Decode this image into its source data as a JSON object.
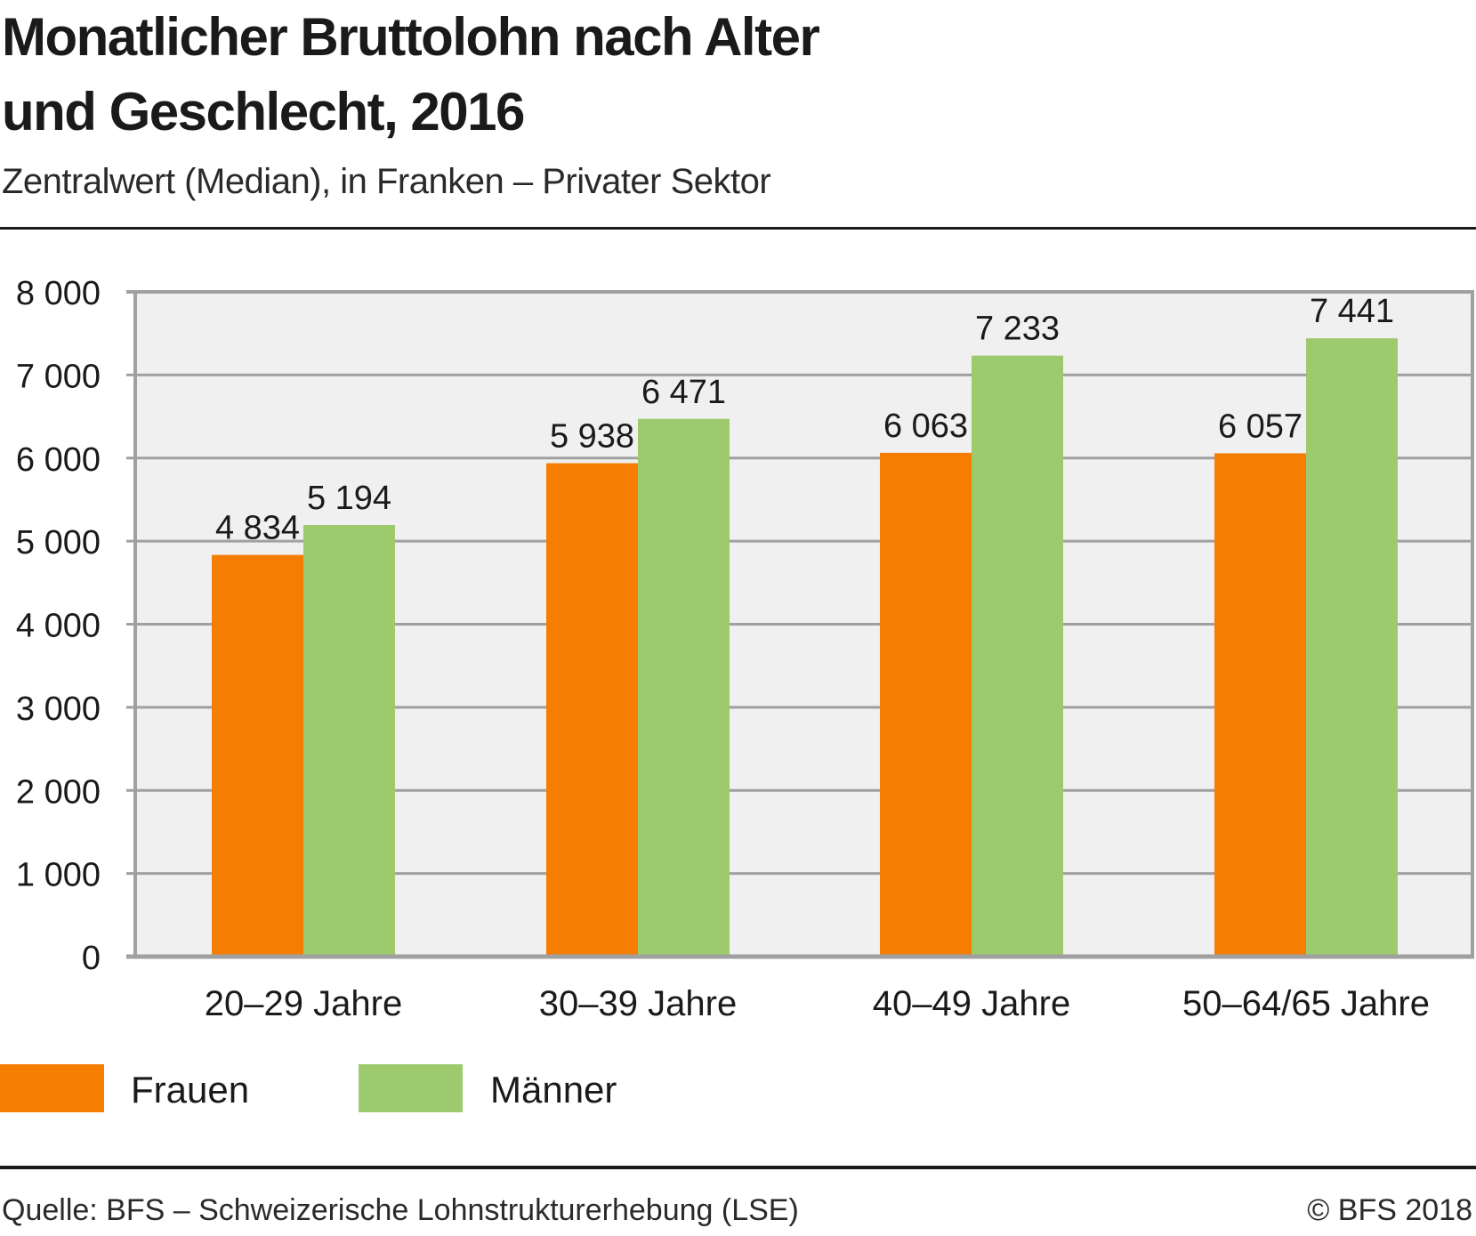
{
  "header": {
    "title_line1": "Monatlicher Bruttolohn nach Alter",
    "title_line2": "und Geschlecht, 2016",
    "subtitle": "Zentralwert (Median), in Franken – Privater Sektor"
  },
  "footer": {
    "source": "Quelle: BFS – Schweizerische Lohnstrukturerhebung (LSE)",
    "copyright": "© BFS 2018"
  },
  "colors": {
    "frauen": "#f47d02",
    "maenner": "#9dca6d",
    "plot_background": "#f0f0f0",
    "grid": "#a0a0a0"
  },
  "chart_data": {
    "type": "bar",
    "title": "Monatlicher Bruttolohn nach Alter und Geschlecht, 2016",
    "subtitle": "Zentralwert (Median), in Franken – Privater Sektor",
    "xlabel": "",
    "ylabel": "",
    "categories": [
      "20–29 Jahre",
      "30–39 Jahre",
      "40–49 Jahre",
      "50–64/65 Jahre"
    ],
    "series": [
      {
        "name": "Frauen",
        "color": "#f47d02",
        "values": [
          4834,
          5938,
          6063,
          6057
        ],
        "labels": [
          "4 834",
          "5 938",
          "6 063",
          "6 057"
        ]
      },
      {
        "name": "Männer",
        "color": "#9dca6d",
        "values": [
          5194,
          6471,
          7233,
          7441
        ],
        "labels": [
          "5 194",
          "6 471",
          "7 233",
          "7 441"
        ]
      }
    ],
    "ylim": [
      0,
      8000
    ],
    "yticks": [
      0,
      1000,
      2000,
      3000,
      4000,
      5000,
      6000,
      7000,
      8000
    ],
    "ytick_labels": [
      "0",
      "1 000",
      "2 000",
      "3 000",
      "4 000",
      "5 000",
      "6 000",
      "7 000",
      "8 000"
    ],
    "grid": true,
    "legend_position": "bottom-left"
  }
}
